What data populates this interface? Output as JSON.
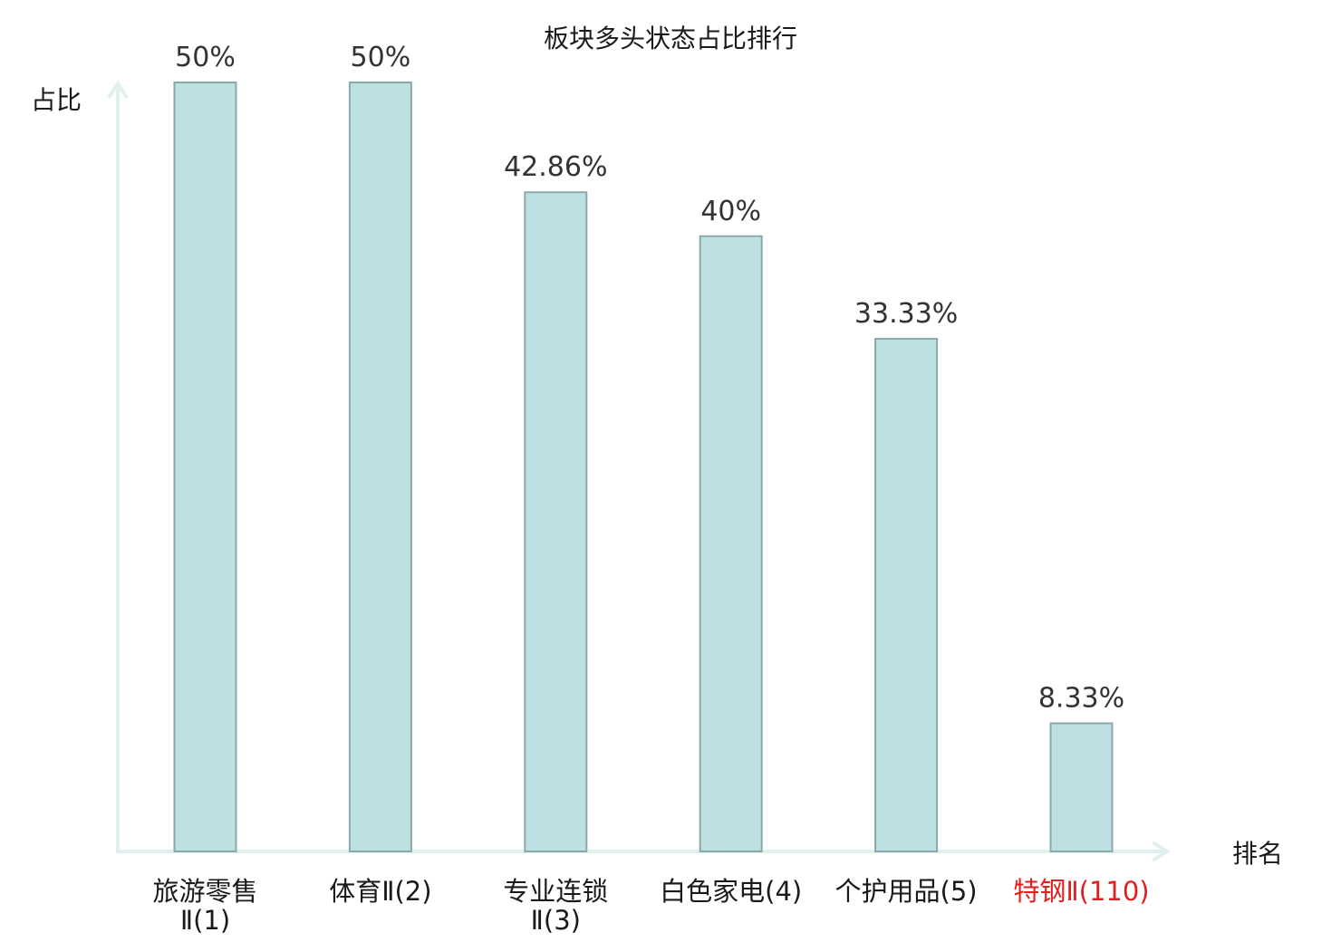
{
  "chart_data": {
    "type": "bar",
    "title": "板块多头状态占比排行",
    "ylabel": "占比",
    "xlabel": "排名",
    "categories": [
      {
        "lines": [
          "旅游零售",
          "Ⅱ(1)"
        ],
        "highlight": false
      },
      {
        "lines": [
          "体育Ⅱ(2)"
        ],
        "highlight": false
      },
      {
        "lines": [
          "专业连锁",
          "Ⅱ(3)"
        ],
        "highlight": false
      },
      {
        "lines": [
          "白色家电(4)"
        ],
        "highlight": false
      },
      {
        "lines": [
          "个护用品(5)"
        ],
        "highlight": false
      },
      {
        "lines": [
          "特钢Ⅱ(110)"
        ],
        "highlight": true
      }
    ],
    "values": [
      50,
      50,
      42.86,
      40,
      33.33,
      8.33
    ],
    "value_labels": [
      "50%",
      "50%",
      "42.86%",
      "40%",
      "33.33%",
      "8.33%"
    ],
    "ylim": [
      0,
      50
    ],
    "grid": false,
    "colors": {
      "bar_fill": "#bde1e3",
      "bar_stroke": "#8aa9ab",
      "axis": "#dff1ee",
      "highlight_text": "#e02020",
      "normal_text": "#1a1a1a"
    }
  }
}
